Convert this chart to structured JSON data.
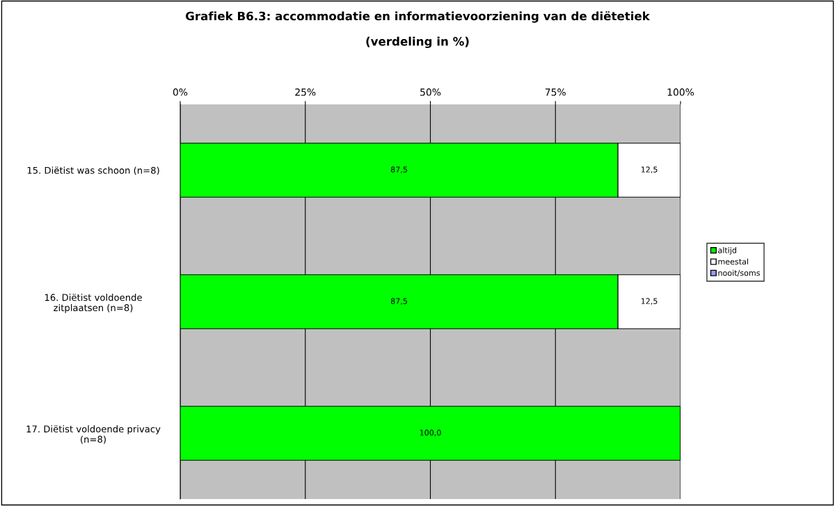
{
  "chart_data": {
    "type": "bar",
    "orientation": "horizontal",
    "stacked": true,
    "title": "Grafiek B6.3: accommodatie en informatievoorziening van de diëtetiek",
    "subtitle": "(verdeling in %)",
    "categories": [
      "15. Diëtist was schoon (n=8)",
      "16. Diëtist voldoende\nzitplaatsen (n=8)",
      "17. Diëtist voldoende privacy\n(n=8)"
    ],
    "series": [
      {
        "name": "altijd",
        "color": "#00ff00",
        "values": [
          87.5,
          87.5,
          100.0
        ],
        "value_labels": [
          "87,5",
          "87,5",
          "100,0"
        ]
      },
      {
        "name": "meestal",
        "color": "#ffffff",
        "values": [
          12.5,
          12.5,
          0
        ],
        "value_labels": [
          "12,5",
          "12,5",
          null
        ]
      },
      {
        "name": "nooit/soms",
        "color": "#9999ff",
        "values": [
          0,
          0,
          0
        ],
        "value_labels": [
          null,
          null,
          null
        ]
      }
    ],
    "xlim": [
      0,
      100
    ],
    "xticks": [
      {
        "value": 0,
        "label": "0%"
      },
      {
        "value": 25,
        "label": "25%"
      },
      {
        "value": 50,
        "label": "50%"
      },
      {
        "value": 75,
        "label": "75%"
      },
      {
        "value": 100,
        "label": "100%"
      }
    ],
    "grid": "x",
    "legend": "right"
  }
}
